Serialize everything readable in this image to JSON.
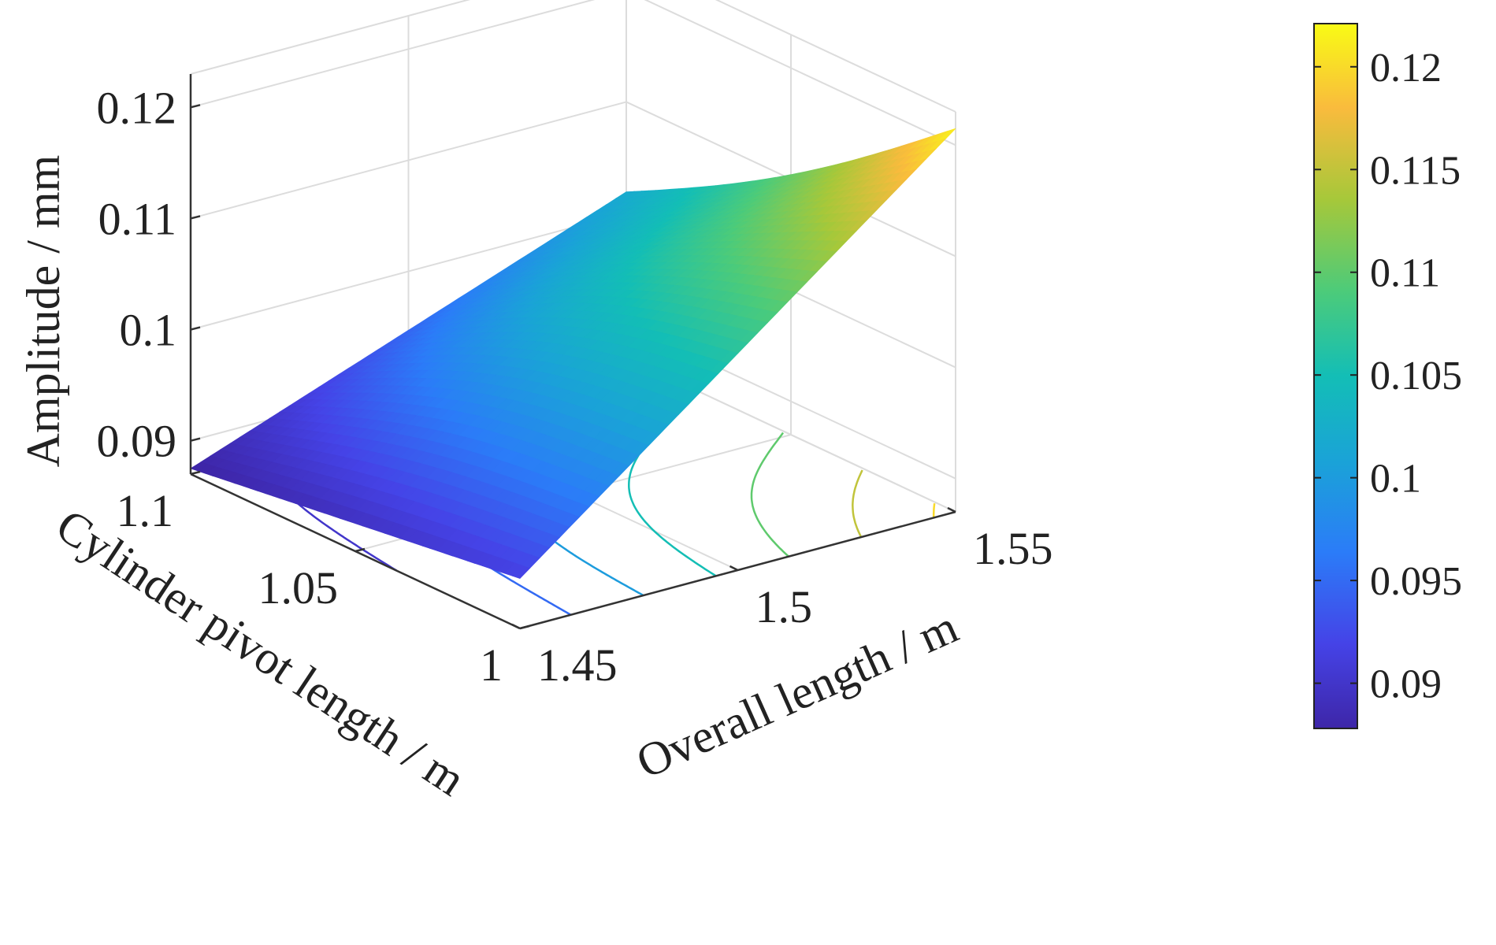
{
  "chart_data": {
    "type": "surface",
    "title": "",
    "xlabel": "Overall length / m",
    "ylabel": "Cylinder pivot length / m",
    "zlabel": "Amplitude / mm",
    "xlim": [
      1.45,
      1.55
    ],
    "ylim": [
      1.0,
      1.1
    ],
    "zlim": [
      0.087,
      0.123
    ],
    "x_ticks": [
      "1.45",
      "1.5",
      "1.55"
    ],
    "y_ticks": [
      "1",
      "1.05",
      "1.1"
    ],
    "z_ticks": [
      "0.09",
      "0.1",
      "0.11",
      "0.12"
    ],
    "grid": true,
    "colormap": "parula",
    "colorbar": {
      "range": [
        0.0878,
        0.1221
      ],
      "ticks": [
        "0.09",
        "0.095",
        "0.1",
        "0.105",
        "0.11",
        "0.115",
        "0.12"
      ]
    },
    "surface_corners": [
      {
        "overall_length": 1.45,
        "cylinder_pivot_length": 1.0,
        "amplitude": 0.0915
      },
      {
        "overall_length": 1.55,
        "cylinder_pivot_length": 1.0,
        "amplitude": 0.1215
      },
      {
        "overall_length": 1.45,
        "cylinder_pivot_length": 1.1,
        "amplitude": 0.0875
      },
      {
        "overall_length": 1.55,
        "cylinder_pivot_length": 1.1,
        "amplitude": 0.1019
      }
    ],
    "contour_levels": [
      0.09,
      0.095,
      0.1,
      0.105,
      0.11,
      0.115,
      0.12
    ]
  }
}
